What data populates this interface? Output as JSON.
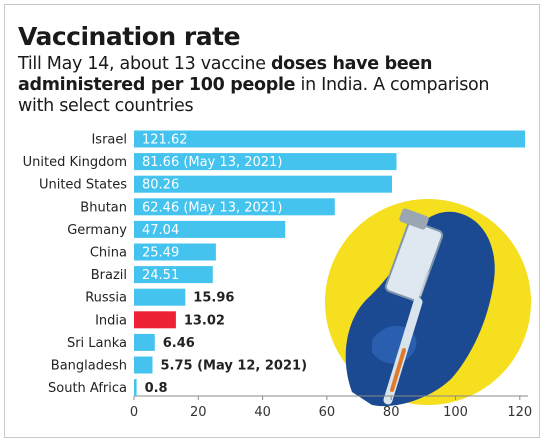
{
  "header": {
    "title": "Vaccination rate",
    "subtitle_line1_pre": "Till May 14, about 13 vaccine ",
    "subtitle_line1_bold": "doses have been",
    "subtitle_line2_bold": "administered per 100 people",
    "subtitle_line2_post": " in India. A comparison",
    "subtitle_line3": "with select countries"
  },
  "colors": {
    "bar": "#45c3ef",
    "highlight": "#ee2234",
    "circle": "#f5df1e",
    "glove": "#1c4a92"
  },
  "chart_data": {
    "type": "bar",
    "orientation": "horizontal",
    "categories": [
      "Israel",
      "United Kingdom",
      "United States",
      "Bhutan",
      "Germany",
      "China",
      "Brazil",
      "Russia",
      "India",
      "Sri Lanka",
      "Bangladesh",
      "South Africa"
    ],
    "values": [
      121.62,
      81.66,
      80.26,
      62.46,
      47.04,
      25.49,
      24.51,
      15.96,
      13.02,
      6.46,
      5.75,
      0.8
    ],
    "labels": [
      "121.62",
      "81.66 (May 13, 2021)",
      "80.26",
      "62.46 (May 13, 2021)",
      "47.04",
      "25.49",
      "24.51",
      "15.96",
      "13.02",
      "6.46",
      "5.75 (May 12, 2021)",
      "0.8"
    ],
    "label_inside": [
      true,
      true,
      true,
      true,
      true,
      true,
      true,
      false,
      false,
      false,
      false,
      false
    ],
    "highlight": "India",
    "xlim": [
      0,
      122
    ],
    "xticks": [
      0,
      20,
      40,
      60,
      80,
      100,
      120
    ],
    "grid": false
  }
}
